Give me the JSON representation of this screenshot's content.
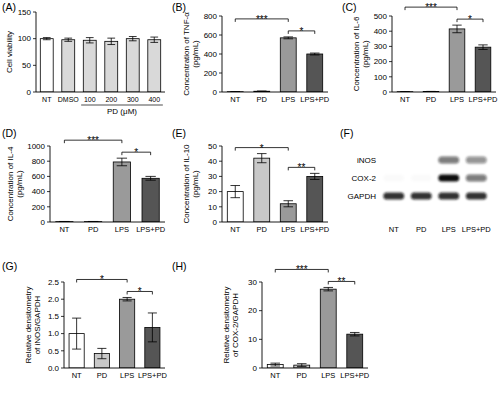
{
  "chart_data": [
    {
      "type": "bar",
      "panel": "(A)",
      "ylabel": [
        "Cell viability"
      ],
      "categories": [
        "NT",
        "DMSO",
        "100",
        "200",
        "300",
        "400"
      ],
      "xlabel": "PD (μM)",
      "xlabel_span": [
        "100",
        "400"
      ],
      "values": [
        100,
        98,
        97,
        95,
        100,
        98
      ],
      "errors": [
        2,
        3,
        5,
        6,
        4,
        5
      ],
      "colors": [
        "#ffffff",
        "#d9d9d9",
        "#d9d9d9",
        "#d9d9d9",
        "#d9d9d9",
        "#d9d9d9"
      ],
      "ylim": [
        0,
        150
      ],
      "yticks": [
        0,
        50,
        100,
        150
      ]
    },
    {
      "type": "bar",
      "panel": "(B)",
      "ylabel": [
        "Concentration of TNF-α",
        "(pg/mL)"
      ],
      "categories": [
        "NT",
        "PD",
        "LPS",
        "LPS+PD"
      ],
      "values": [
        3,
        8,
        570,
        400
      ],
      "errors": [
        1,
        2,
        10,
        10
      ],
      "colors": [
        "#ffffff",
        "#c8c8c8",
        "#9a9a9a",
        "#555555"
      ],
      "ylim": [
        0,
        800
      ],
      "yticks": [
        0,
        200,
        400,
        600,
        800
      ],
      "annotations": [
        {
          "from": "LPS",
          "to": "LPS+PD",
          "text": "*"
        },
        {
          "from": "NT",
          "to": "LPS",
          "text": "***"
        }
      ]
    },
    {
      "type": "bar",
      "panel": "(C)",
      "ylabel": [
        "Concentration of IL-6",
        "(pg/mL)"
      ],
      "categories": [
        "NT",
        "PD",
        "LPS",
        "LPS+PD"
      ],
      "values": [
        2,
        3,
        415,
        295
      ],
      "errors": [
        1,
        1,
        25,
        15
      ],
      "colors": [
        "#ffffff",
        "#c8c8c8",
        "#9a9a9a",
        "#555555"
      ],
      "ylim": [
        0,
        500
      ],
      "yticks": [
        0,
        100,
        200,
        300,
        400,
        500
      ],
      "annotations": [
        {
          "from": "LPS",
          "to": "LPS+PD",
          "text": "*"
        },
        {
          "from": "NT",
          "to": "LPS",
          "text": "***"
        }
      ]
    },
    {
      "type": "bar",
      "panel": "(D)",
      "ylabel": [
        "Concentration of IL-4",
        "(pg/mL)"
      ],
      "categories": [
        "NT",
        "PD",
        "LPS",
        "LPS+PD"
      ],
      "values": [
        5,
        5,
        790,
        575
      ],
      "errors": [
        2,
        2,
        50,
        25
      ],
      "colors": [
        "#ffffff",
        "#c8c8c8",
        "#9a9a9a",
        "#555555"
      ],
      "ylim": [
        0,
        1000
      ],
      "yticks": [
        0,
        200,
        400,
        600,
        800,
        1000
      ],
      "annotations": [
        {
          "from": "LPS",
          "to": "LPS+PD",
          "text": "*"
        },
        {
          "from": "NT",
          "to": "LPS",
          "text": "***"
        }
      ]
    },
    {
      "type": "bar",
      "panel": "(E)",
      "ylabel": [
        "Concentration of IL-10",
        "(pg/mL)"
      ],
      "categories": [
        "NT",
        "PD",
        "LPS",
        "LPS+PD"
      ],
      "values": [
        20,
        42,
        12,
        30
      ],
      "errors": [
        4,
        3,
        2,
        2
      ],
      "colors": [
        "#ffffff",
        "#c8c8c8",
        "#9a9a9a",
        "#555555"
      ],
      "ylim": [
        0,
        50
      ],
      "yticks": [
        0,
        10,
        20,
        30,
        40,
        50
      ],
      "annotations": [
        {
          "from": "LPS",
          "to": "LPS+PD",
          "text": "**"
        },
        {
          "from": "NT",
          "to": "LPS",
          "text": "*"
        }
      ]
    },
    {
      "type": "blot",
      "panel": "(F)",
      "rows": [
        "iNOS",
        "COX-2",
        "GAPDH"
      ],
      "categories": [
        "NT",
        "PD",
        "LPS",
        "LPS+PD"
      ],
      "band_intensity": [
        [
          0,
          0,
          0.55,
          0.45
        ],
        [
          0.02,
          0.02,
          1,
          0.55
        ],
        [
          0.85,
          0.85,
          0.85,
          0.85
        ]
      ]
    },
    {
      "type": "bar",
      "panel": "(G)",
      "ylabel": [
        "Relative densitometry",
        "of iNOS/GAPDH"
      ],
      "categories": [
        "NT",
        "PD",
        "LPS",
        "LPS+PD"
      ],
      "values": [
        1.0,
        0.42,
        2.0,
        1.18
      ],
      "errors": [
        0.45,
        0.15,
        0.05,
        0.42
      ],
      "colors": [
        "#ffffff",
        "#c8c8c8",
        "#9a9a9a",
        "#555555"
      ],
      "ylim": [
        0,
        2.5
      ],
      "yticks": [
        {
          "value": 0,
          "label": "0.0"
        },
        {
          "value": 0.5,
          "label": "0.5"
        },
        {
          "value": 1,
          "label": "1.0"
        },
        {
          "value": 1.5,
          "label": "1.5"
        },
        {
          "value": 2,
          "label": "2.0"
        },
        {
          "value": 2.5,
          "label": "2.5"
        }
      ],
      "annotations": [
        {
          "from": "LPS",
          "to": "LPS+PD",
          "text": "*"
        },
        {
          "from": "NT",
          "to": "LPS",
          "text": "*"
        }
      ]
    },
    {
      "type": "bar",
      "panel": "(H)",
      "ylabel": [
        "Relative densitometry",
        "of COX-2/GAPDH"
      ],
      "categories": [
        "NT",
        "PD",
        "LPS",
        "LPS+PD"
      ],
      "values": [
        1.2,
        1.0,
        27.5,
        11.8
      ],
      "errors": [
        0.5,
        0.5,
        0.6,
        0.6
      ],
      "colors": [
        "#ffffff",
        "#c8c8c8",
        "#9a9a9a",
        "#555555"
      ],
      "ylim": [
        0,
        30
      ],
      "yticks": [
        0,
        10,
        20,
        30
      ],
      "annotations": [
        {
          "from": "LPS",
          "to": "LPS+PD",
          "text": "**"
        },
        {
          "from": "NT",
          "to": "LPS",
          "text": "***"
        }
      ]
    }
  ]
}
